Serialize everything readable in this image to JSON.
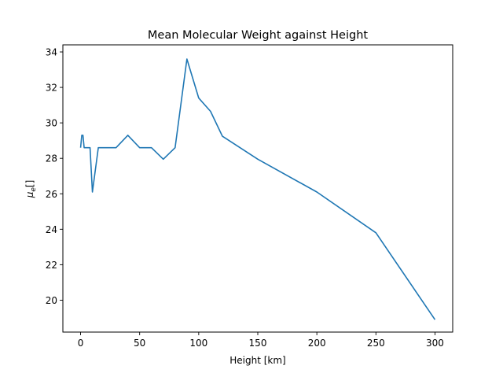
{
  "chart_data": {
    "type": "line",
    "title": "Mean Molecular Weight against Height",
    "xlabel": "Height [km]",
    "ylabel_symbol": "μ",
    "ylabel_subscript": "e",
    "ylabel_suffix": "[]",
    "xlim": [
      -15,
      315
    ],
    "ylim": [
      18.2,
      34.4
    ],
    "xticks": [
      0,
      50,
      100,
      150,
      200,
      250,
      300
    ],
    "yticks": [
      20,
      22,
      24,
      26,
      28,
      30,
      32,
      34
    ],
    "grid": false,
    "series": [
      {
        "color": "#1f77b4",
        "x": [
          0,
          1,
          2,
          3,
          5,
          8,
          10,
          15,
          20,
          30,
          40,
          50,
          60,
          70,
          80,
          90,
          100,
          110,
          120,
          150,
          200,
          250,
          300
        ],
        "y": [
          28.6,
          29.3,
          29.3,
          28.6,
          28.6,
          28.6,
          26.1,
          28.6,
          28.6,
          28.6,
          29.3,
          28.6,
          28.6,
          27.95,
          28.6,
          33.6,
          31.4,
          30.65,
          29.25,
          27.95,
          26.1,
          23.8,
          18.9
        ]
      }
    ]
  }
}
